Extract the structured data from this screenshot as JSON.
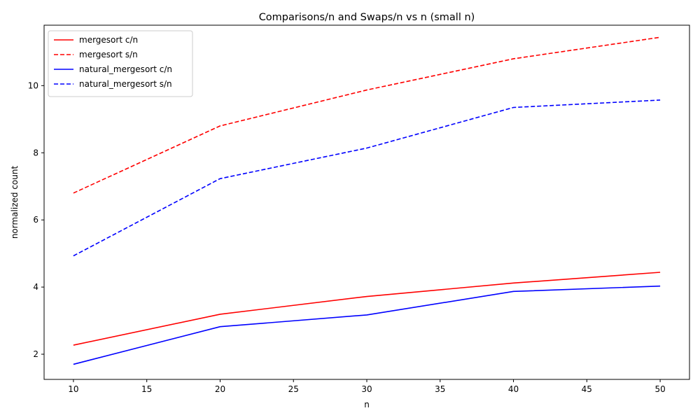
{
  "chart_data": {
    "type": "line",
    "title": "Comparisons/n and Swaps/n vs n (small n)",
    "xlabel": "n",
    "ylabel": "normalized count",
    "x": [
      10,
      20,
      30,
      40,
      50
    ],
    "xlim": [
      8,
      52
    ],
    "ylim": [
      1.25,
      11.8
    ],
    "xticks": [
      10,
      15,
      20,
      25,
      30,
      35,
      40,
      45,
      50
    ],
    "yticks": [
      2,
      4,
      6,
      8,
      10
    ],
    "grid": false,
    "legend_position": "upper-left",
    "series": [
      {
        "name": "mergesort c/n",
        "color": "#ff0000",
        "style": "solid",
        "values": [
          2.27,
          3.19,
          3.72,
          4.12,
          4.44
        ]
      },
      {
        "name": "mergesort s/n",
        "color": "#ff0000",
        "style": "dashed",
        "values": [
          6.8,
          8.8,
          9.87,
          10.8,
          11.44
        ]
      },
      {
        "name": "natural_mergesort c/n",
        "color": "#0000ff",
        "style": "solid",
        "values": [
          1.7,
          2.82,
          3.17,
          3.87,
          4.03
        ]
      },
      {
        "name": "natural_mergesort s/n",
        "color": "#0000ff",
        "style": "dashed",
        "values": [
          4.93,
          7.23,
          8.14,
          9.35,
          9.57
        ]
      }
    ]
  }
}
